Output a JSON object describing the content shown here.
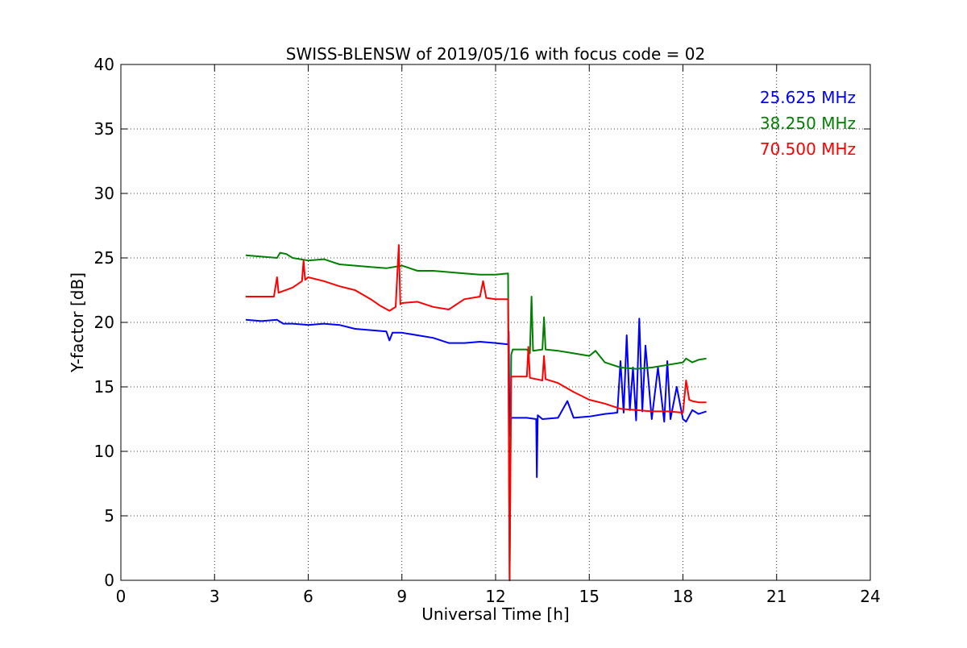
{
  "chart_data": {
    "type": "line",
    "title": "SWISS-BLENSW of 2019/05/16 with focus code = 02",
    "xlabel": "Universal Time [h]",
    "ylabel": "Y-factor [dB]",
    "xlim": [
      0,
      24
    ],
    "ylim": [
      0,
      40
    ],
    "xticks": [
      0,
      3,
      6,
      9,
      12,
      15,
      18,
      21,
      24
    ],
    "yticks": [
      0,
      5,
      10,
      15,
      20,
      25,
      30,
      35,
      40
    ],
    "xtick_labels": [
      "0",
      "3",
      "6",
      "9",
      "12",
      "15",
      "18",
      "21",
      "24"
    ],
    "ytick_labels": [
      "0",
      "5",
      "10",
      "15",
      "20",
      "25",
      "30",
      "35",
      "40"
    ],
    "grid": true,
    "legend_position": "top-right",
    "series": [
      {
        "name": "25.625 MHz",
        "color": "#0000ff",
        "x": [
          4.0,
          4.5,
          5.0,
          5.2,
          5.5,
          6.0,
          6.5,
          7.0,
          7.5,
          8.0,
          8.5,
          8.6,
          8.7,
          9.0,
          9.5,
          10.0,
          10.5,
          11.0,
          11.5,
          12.0,
          12.4,
          12.42,
          12.45,
          12.5,
          12.55,
          13.0,
          13.3,
          13.32,
          13.35,
          13.5,
          14.0,
          14.3,
          14.5,
          15.0,
          15.5,
          15.9,
          16.0,
          16.1,
          16.2,
          16.3,
          16.4,
          16.5,
          16.6,
          16.7,
          16.8,
          17.0,
          17.2,
          17.4,
          17.5,
          17.6,
          17.8,
          18.0,
          18.1,
          18.3,
          18.5,
          18.75
        ],
        "y": [
          20.2,
          20.1,
          20.2,
          19.9,
          19.9,
          19.8,
          19.9,
          19.8,
          19.5,
          19.4,
          19.3,
          18.6,
          19.2,
          19.2,
          19.0,
          18.8,
          18.4,
          18.4,
          18.5,
          18.4,
          18.3,
          19.3,
          11.2,
          12.6,
          12.6,
          12.6,
          12.5,
          8.0,
          12.8,
          12.5,
          12.6,
          13.9,
          12.6,
          12.7,
          12.9,
          13.0,
          17.0,
          13.0,
          19.0,
          13.2,
          16.5,
          12.4,
          20.3,
          13.1,
          18.2,
          12.5,
          16.5,
          12.3,
          17.0,
          12.5,
          15.0,
          12.5,
          12.3,
          13.2,
          12.9,
          13.1
        ]
      },
      {
        "name": "38.250 MHz",
        "color": "#008000",
        "x": [
          4.0,
          4.5,
          5.0,
          5.1,
          5.3,
          5.5,
          6.0,
          6.5,
          7.0,
          7.5,
          8.0,
          8.5,
          9.0,
          9.5,
          10.0,
          10.5,
          11.0,
          11.5,
          12.0,
          12.4,
          12.45,
          12.5,
          12.55,
          13.0,
          13.1,
          13.15,
          13.2,
          13.5,
          13.55,
          13.6,
          14.0,
          14.5,
          15.0,
          15.2,
          15.5,
          16.0,
          16.5,
          17.0,
          17.5,
          18.0,
          18.1,
          18.3,
          18.5,
          18.75
        ],
        "y": [
          25.2,
          25.1,
          25.0,
          25.4,
          25.3,
          25.0,
          24.8,
          24.9,
          24.5,
          24.4,
          24.3,
          24.2,
          24.4,
          24.0,
          24.0,
          23.9,
          23.8,
          23.7,
          23.7,
          23.8,
          0.0,
          17.5,
          17.9,
          17.9,
          17.6,
          22.0,
          17.8,
          17.9,
          20.4,
          17.9,
          17.8,
          17.6,
          17.4,
          17.8,
          16.9,
          16.5,
          16.4,
          16.5,
          16.7,
          16.9,
          17.2,
          16.9,
          17.1,
          17.2
        ]
      },
      {
        "name": "70.500 MHz",
        "color": "#ff0000",
        "x": [
          4.0,
          4.5,
          4.9,
          5.0,
          5.05,
          5.5,
          5.8,
          5.85,
          5.9,
          6.0,
          6.5,
          7.0,
          7.5,
          8.0,
          8.3,
          8.6,
          8.8,
          8.9,
          8.95,
          9.0,
          9.5,
          10.0,
          10.5,
          11.0,
          11.5,
          11.6,
          11.7,
          12.0,
          12.4,
          12.45,
          12.5,
          12.55,
          13.0,
          13.05,
          13.1,
          13.5,
          13.55,
          13.6,
          14.0,
          14.5,
          15.0,
          15.5,
          16.0,
          16.5,
          17.0,
          17.5,
          18.0,
          18.1,
          18.2,
          18.3,
          18.5,
          18.75
        ],
        "y": [
          22.0,
          22.0,
          22.0,
          23.5,
          22.3,
          22.7,
          23.2,
          24.8,
          23.3,
          23.5,
          23.2,
          22.8,
          22.5,
          21.8,
          21.3,
          20.9,
          21.2,
          26.0,
          21.4,
          21.5,
          21.6,
          21.2,
          21.0,
          21.8,
          22.0,
          23.2,
          21.9,
          21.8,
          21.8,
          0.0,
          15.8,
          15.8,
          15.8,
          18.1,
          15.7,
          15.5,
          17.4,
          15.6,
          15.3,
          14.6,
          14.0,
          13.7,
          13.3,
          13.2,
          13.1,
          13.1,
          13.0,
          15.5,
          14.0,
          13.9,
          13.8,
          13.8
        ]
      }
    ]
  }
}
